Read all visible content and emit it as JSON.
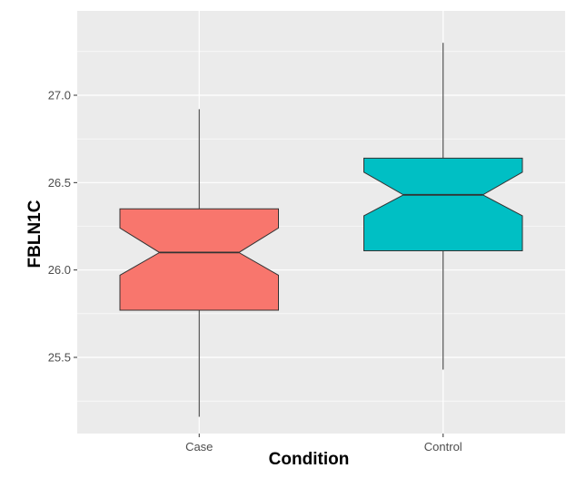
{
  "chart_data": {
    "type": "box",
    "title": "",
    "xlabel": "Condition",
    "ylabel": "FBLN1C",
    "notched": true,
    "grid": true,
    "legend": "none",
    "categories": [
      "Case",
      "Control"
    ],
    "ylim": [
      25.0,
      27.35
    ],
    "yticks": [
      25.5,
      26.0,
      26.5,
      27.0
    ],
    "ytick_labels": [
      "25.5",
      "26.0",
      "26.5",
      "27.0"
    ],
    "boxes": [
      {
        "category": "Case",
        "whisker_low": 25.16,
        "q1": 25.77,
        "median": 26.1,
        "q3": 26.35,
        "whisker_high": 26.92,
        "notch_low": 25.97,
        "notch_high": 26.24,
        "fill": "#F8766D"
      },
      {
        "category": "Control",
        "whisker_low": 25.43,
        "q1": 26.11,
        "median": 26.43,
        "q3": 26.64,
        "whisker_high": 27.3,
        "notch_low": 26.31,
        "notch_high": 26.56,
        "fill": "#00BFC4"
      }
    ],
    "colors": {
      "panel_background": "#EBEBEB",
      "grid": "#FFFFFF",
      "outline": "#333333"
    }
  }
}
